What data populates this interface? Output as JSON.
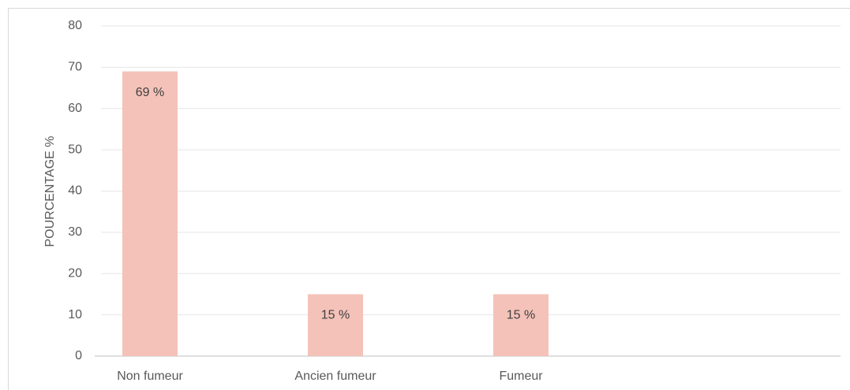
{
  "chart_data": {
    "type": "bar",
    "y_label": "POURCENTAGE  %",
    "categories": [
      "Non fumeur",
      "Ancien fumeur",
      "Fumeur",
      null
    ],
    "values": [
      69,
      15,
      15,
      null
    ],
    "value_labels": [
      "69 %",
      "15 %",
      "15 %",
      null
    ],
    "color": "#f4c2b9",
    "ylim": [
      0,
      80
    ],
    "yticks": [
      0,
      10,
      20,
      30,
      40,
      50,
      60,
      70,
      80
    ],
    "grid": true
  }
}
